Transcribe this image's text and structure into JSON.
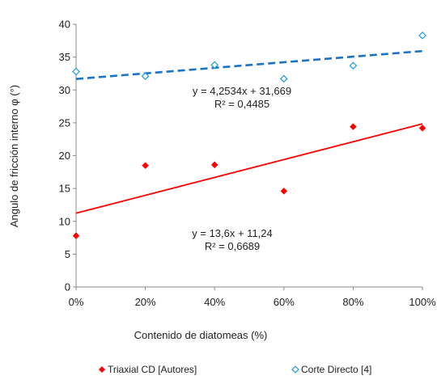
{
  "chart_data": {
    "type": "scatter",
    "ylabel": "Angulo de fricción interno φ (°)",
    "xlabel": "Contenido de diatomeas (%)",
    "x": [
      0,
      0.2,
      0.4,
      0.6,
      0.8,
      1.0
    ],
    "x_tick_labels": [
      "0%",
      "20%",
      "40%",
      "60%",
      "80%",
      "100%"
    ],
    "xlim": [
      0,
      1
    ],
    "ylim": [
      0,
      40
    ],
    "y_ticks": [
      0,
      5,
      10,
      15,
      20,
      25,
      30,
      35,
      40
    ],
    "grid": false,
    "legend_position": "bottom",
    "series": [
      {
        "name": "Triaxial CD [Autores]",
        "marker": "filled-diamond",
        "color": "#ff0000",
        "values": [
          7.8,
          18.5,
          18.6,
          14.6,
          24.4,
          24.2
        ],
        "trendline": {
          "slope": 13.6,
          "intercept": 11.24,
          "style": "solid",
          "equation": "y = 13,6x + 11,24",
          "r2": "R² = 0,6689"
        }
      },
      {
        "name": "Corte Directo [4]",
        "marker": "open-diamond",
        "color": "#1f9bd7",
        "values": [
          32.8,
          32.1,
          33.8,
          31.7,
          33.7,
          38.3
        ],
        "trendline": {
          "slope": 4.2534,
          "intercept": 31.669,
          "style": "dashed",
          "color": "#1a73c5",
          "equation": "y = 4,2534x + 31,669",
          "r2": "R² = 0,4485"
        }
      }
    ]
  }
}
